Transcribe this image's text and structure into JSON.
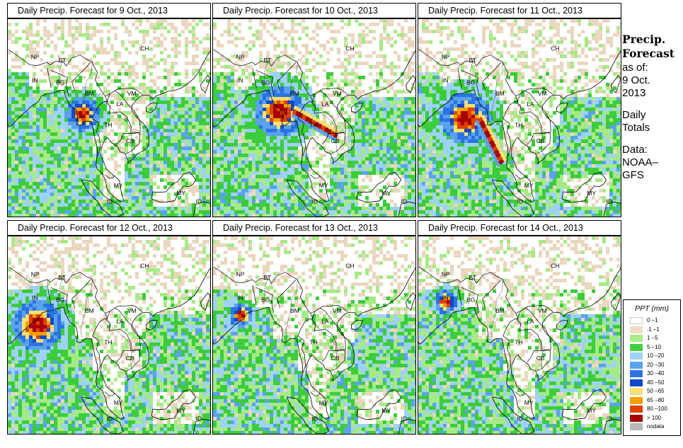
{
  "panels": [
    {
      "title": "Daily Precip. Forecast for  9 Oct., 2013",
      "storm_lon": 95.2,
      "storm_lat": 18.3,
      "storm_size": "medium",
      "band_rotation": 0
    },
    {
      "title": "Daily Precip. Forecast for  10 Oct., 2013",
      "storm_lon": 93.4,
      "storm_lat": 18.8,
      "storm_size": "large",
      "band_rotation": 8
    },
    {
      "title": "Daily Precip. Forecast for  11 Oct., 2013",
      "storm_lon": 89.5,
      "storm_lat": 17.5,
      "storm_size": "large",
      "band_rotation": 25
    },
    {
      "title": "Daily Precip. Forecast for  12 Oct., 2013",
      "storm_lon": 85.8,
      "storm_lat": 19.4,
      "storm_size": "large",
      "band_rotation": 0
    },
    {
      "title": "Daily Precip. Forecast for  13 Oct., 2013",
      "storm_lon": 85.4,
      "storm_lat": 21.3,
      "storm_size": "small",
      "band_rotation": 0
    },
    {
      "title": "Daily Precip. Forecast for  14 Oct., 2013",
      "storm_lon": 85.4,
      "storm_lat": 23.9,
      "storm_size": "small",
      "band_rotation": 0
    }
  ],
  "country_labels": [
    {
      "code": "CH",
      "lon": 107.5,
      "lat": 30.0
    },
    {
      "code": "NP",
      "lon": 84.8,
      "lat": 28.4
    },
    {
      "code": "BT",
      "lon": 90.5,
      "lat": 27.8
    },
    {
      "code": "BG",
      "lon": 90.0,
      "lat": 23.6
    },
    {
      "code": "IN",
      "lon": 85.0,
      "lat": 24.0
    },
    {
      "code": "BM",
      "lon": 96.0,
      "lat": 21.5
    },
    {
      "code": "VM",
      "lon": 104.8,
      "lat": 21.5
    },
    {
      "code": "LA",
      "lon": 102.5,
      "lat": 19.5
    },
    {
      "code": "TH",
      "lon": 100.0,
      "lat": 15.5
    },
    {
      "code": "CB",
      "lon": 104.5,
      "lat": 12.5
    },
    {
      "code": "MY",
      "lon": 102.0,
      "lat": 4.0
    },
    {
      "code": "MY",
      "lon": 115.0,
      "lat": 2.5
    },
    {
      "code": "ID",
      "lon": 100.5,
      "lat": 1.0
    },
    {
      "code": "ID",
      "lon": 119.0,
      "lat": 1.0
    }
  ],
  "side": {
    "heading_line1": "Precip.",
    "heading_line2": "Forecast",
    "asof": "as of:",
    "date_line1": "9 Oct.",
    "date_line2": "2013",
    "daily_line1": "Daily",
    "daily_line2": "Totals",
    "data_line1": "Data:",
    "data_line2": "NOAA–",
    "data_line3": "GFS"
  },
  "legend": {
    "title": "PPT (mm)",
    "items": [
      {
        "label": "0 –1",
        "color": "#ffffff"
      },
      {
        "label": ".1 –1",
        "color": "#f0dcc4"
      },
      {
        "label": "1 –5",
        "color": "#a8ec88"
      },
      {
        "label": "5 –10",
        "color": "#40d040"
      },
      {
        "label": "10 –20",
        "color": "#9ed2f4"
      },
      {
        "label": "20 –30",
        "color": "#5aa2ee"
      },
      {
        "label": "30 –40",
        "color": "#2a74e2"
      },
      {
        "label": "40 –50",
        "color": "#1048c8"
      },
      {
        "label": "50 –65",
        "color": "#fae070"
      },
      {
        "label": "65 –80",
        "color": "#f8a000"
      },
      {
        "label": "80 –100",
        "color": "#e04000"
      },
      {
        "label": "> 100",
        "color": "#a80000"
      },
      {
        "label": "nodata",
        "color": "#b8b8b8"
      }
    ]
  }
}
